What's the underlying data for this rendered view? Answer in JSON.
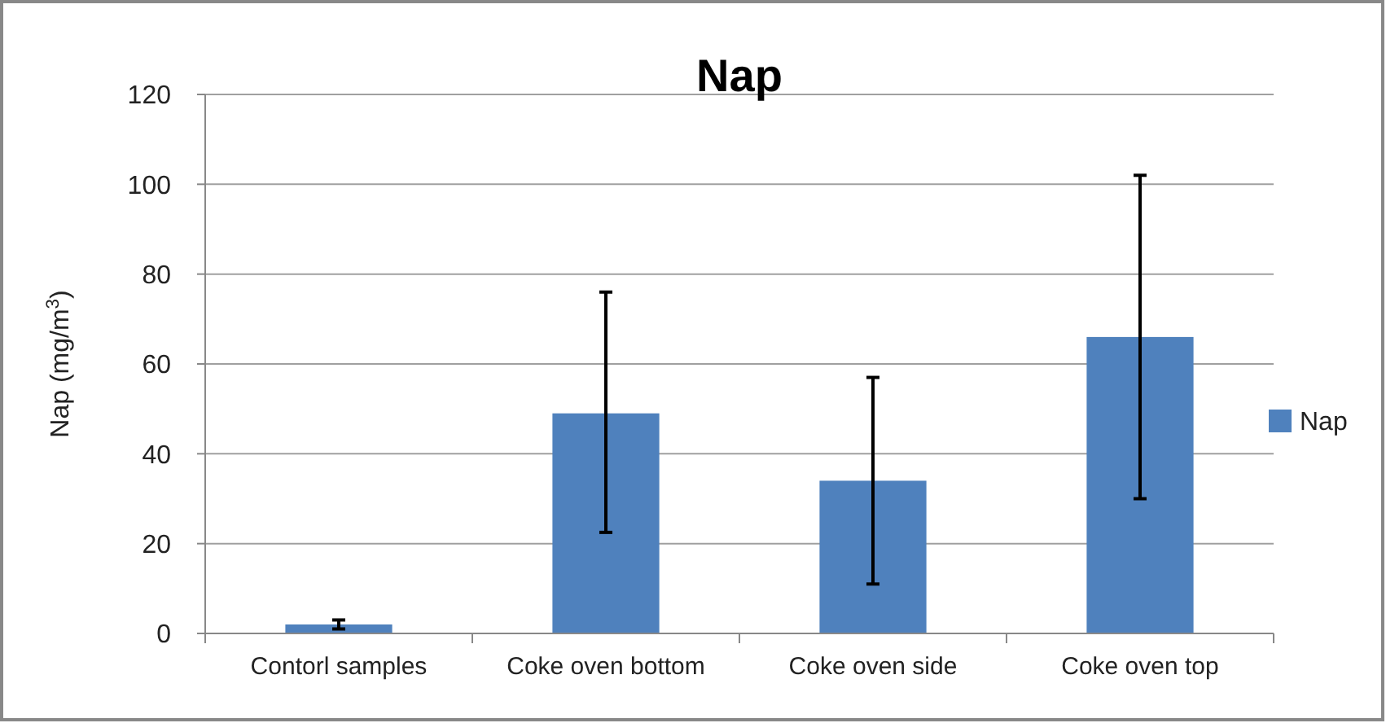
{
  "chart_data": {
    "type": "bar",
    "title": "Nap",
    "ylabel": "Nap (mg/m$^{3}$)",
    "categories": [
      "Contorl samples",
      "Coke oven bottom",
      "Coke oven side",
      "Coke oven top"
    ],
    "series": [
      {
        "name": "Nap",
        "color": "#4f81bd",
        "values": [
          2,
          49,
          34,
          66
        ],
        "errors": [
          [
            1,
            3
          ],
          [
            22.5,
            76
          ],
          [
            11,
            57
          ],
          [
            30,
            102
          ]
        ]
      }
    ],
    "ylim": [
      0,
      120
    ],
    "yticks": [
      0,
      20,
      40,
      60,
      80,
      100,
      120
    ],
    "grid": "y",
    "legend": "right"
  }
}
